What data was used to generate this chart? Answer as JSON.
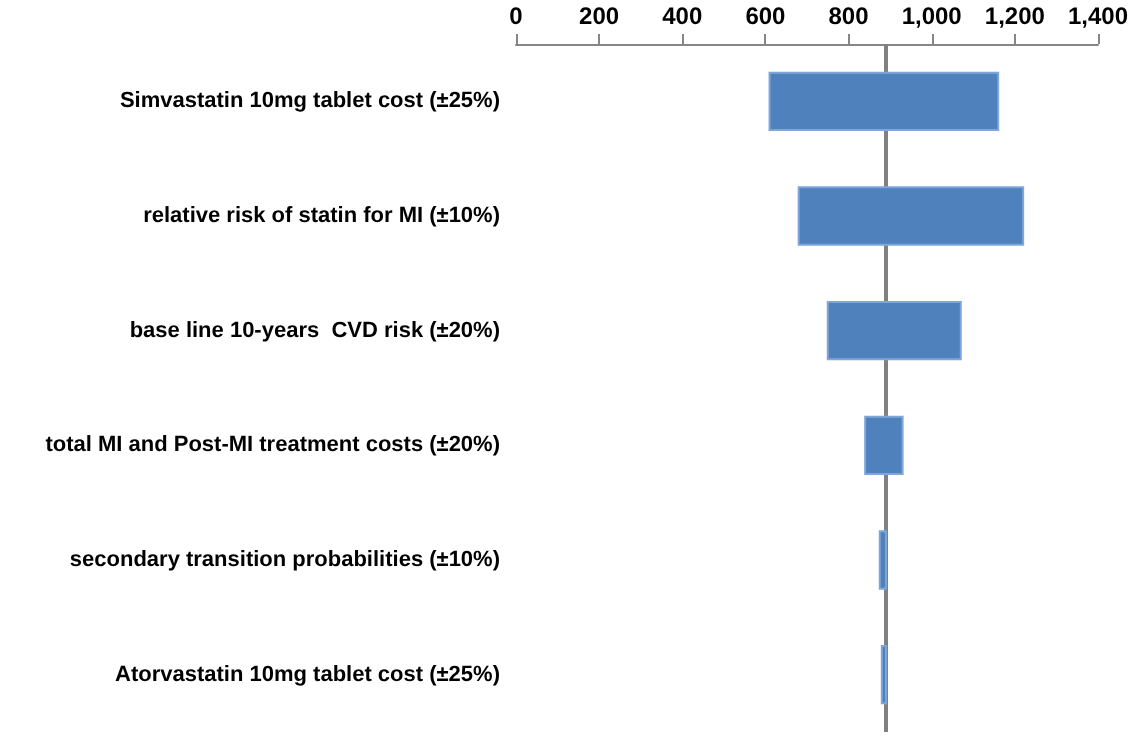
{
  "chart_data": {
    "type": "bar",
    "orientation": "horizontal",
    "categories": [
      "Simvastatin 10mg tablet cost (±25%)",
      "relative risk of statin for MI (±10%)",
      "base line 10-years  CVD risk (±20%)",
      "total MI and Post-MI treatment costs (±20%)",
      "secondary transition probabilities (±10%)",
      "Atorvastatin 10mg tablet cost (±25%)"
    ],
    "base": [
      610,
      680,
      750,
      840,
      875,
      880
    ],
    "values": [
      550,
      540,
      320,
      90,
      15,
      10
    ],
    "color": "#4f81bd",
    "xlim": [
      0,
      1400
    ],
    "xticks": [
      0,
      {
        "value": 200,
        "label": "200"
      },
      {
        "value": 400,
        "label": "400"
      },
      {
        "value": 600,
        "label": "600"
      },
      {
        "value": 800,
        "label": "800"
      },
      {
        "value": 1000,
        "label": "1,000"
      },
      {
        "value": 1200,
        "label": "1,200"
      },
      {
        "value": 1400,
        "label": "1,400"
      }
    ],
    "ref_lines": [
      {
        "axis": "x",
        "value": 890,
        "label": null,
        "color": "#808080"
      }
    ]
  }
}
